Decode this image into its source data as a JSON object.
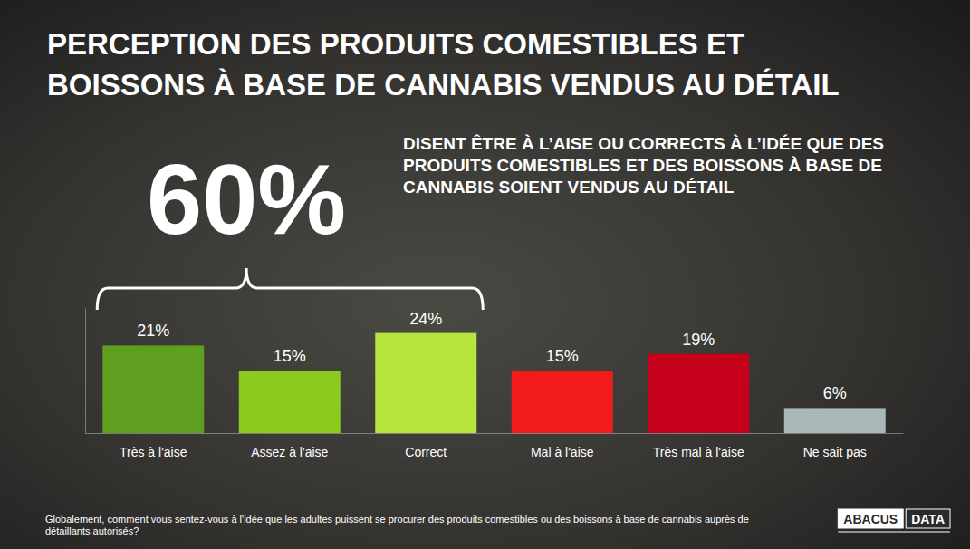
{
  "chart_data": {
    "type": "bar",
    "title": "PERCEPTION DES PRODUITS COMESTIBLES ET\nBOISSONS À BASE DE CANNABIS VENDUS AU DÉTAIL",
    "categories": [
      "Très à l'aise",
      "Assez à l'aise",
      "Correct",
      "Mal à l'aise",
      "Très mal à l'aise",
      "Ne sait pas"
    ],
    "values": [
      21,
      15,
      24,
      15,
      19,
      6
    ],
    "value_labels": [
      "21%",
      "15%",
      "24%",
      "15%",
      "19%",
      "6%"
    ],
    "colors": [
      "#5f9f1f",
      "#8ccb1e",
      "#b6e63e",
      "#f21c1c",
      "#c4001b",
      "#a8b8b8"
    ],
    "ylim": [
      0,
      30
    ],
    "yticks": [],
    "data_labels": true,
    "tick_labels": "x",
    "annotations": [
      {
        "value": 60,
        "label": "60%",
        "text": "DISENT ÊTRE À L’AISE OU CORRECTS À L’IDÉE QUE DES PRODUITS COMESTIBLES ET DES BOISSONS À BASE DE CANNABIS SOIENT VENDUS AU DÉTAIL",
        "categories": [
          "Très à l'aise",
          "Assez à l'aise",
          "Correct"
        ]
      }
    ],
    "footnote": "Globalement, comment vous sentez-vous à l'idée que les adultes puissent se procurer des produits comestibles ou des boissons à base de cannabis auprès de détaillants autorisés?",
    "source": "ABACUS DATA"
  }
}
